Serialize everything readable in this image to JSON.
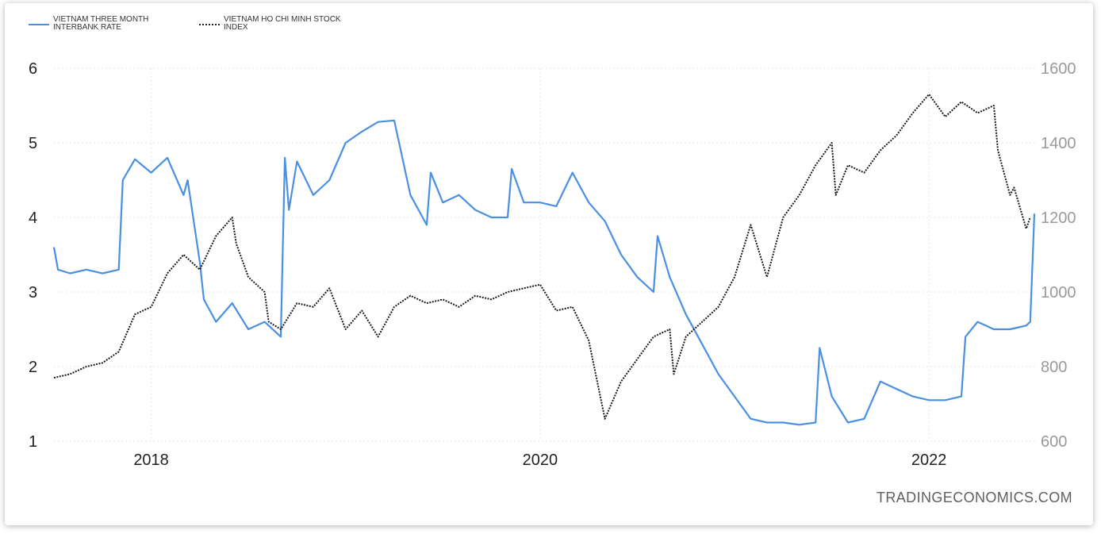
{
  "legend": {
    "series1": "VIETNAM THREE MONTH INTERBANK RATE",
    "series2": "VIETNAM HO CHI MINH STOCK INDEX"
  },
  "watermark": "TRADINGECONOMICS.COM",
  "colors": {
    "series1": "#4a90e2",
    "series2": "#1a1a1a",
    "grid": "#e6e6e6"
  },
  "chart_data": {
    "type": "line",
    "x_ticks": [
      "2018",
      "2020",
      "2022"
    ],
    "y_left": {
      "ticks": [
        1,
        2,
        3,
        4,
        5,
        6
      ],
      "range": [
        1,
        6
      ]
    },
    "y_right": {
      "ticks": [
        600,
        800,
        1000,
        1200,
        1400,
        1600
      ],
      "range": [
        600,
        1600
      ]
    },
    "x_range": [
      "2017-07",
      "2022-07"
    ],
    "grid": true,
    "legend_position": "top-left",
    "series": [
      {
        "name": "VIETNAM THREE MONTH INTERBANK RATE",
        "axis": "left",
        "style": "solid",
        "points": [
          [
            "2017-07",
            3.6
          ],
          [
            "2017-07",
            3.3
          ],
          [
            "2017-08",
            3.25
          ],
          [
            "2017-09",
            3.3
          ],
          [
            "2017-10",
            3.25
          ],
          [
            "2017-11",
            3.3
          ],
          [
            "2017-11",
            4.5
          ],
          [
            "2017-12",
            4.78
          ],
          [
            "2018-01",
            4.6
          ],
          [
            "2018-02",
            4.8
          ],
          [
            "2018-03",
            4.3
          ],
          [
            "2018-03",
            4.5
          ],
          [
            "2018-04",
            3.4
          ],
          [
            "2018-04",
            2.9
          ],
          [
            "2018-05",
            2.6
          ],
          [
            "2018-06",
            2.85
          ],
          [
            "2018-07",
            2.5
          ],
          [
            "2018-08",
            2.6
          ],
          [
            "2018-09",
            2.4
          ],
          [
            "2018-09",
            4.8
          ],
          [
            "2018-09",
            4.1
          ],
          [
            "2018-10",
            4.75
          ],
          [
            "2018-11",
            4.3
          ],
          [
            "2018-12",
            4.5
          ],
          [
            "2019-01",
            5.0
          ],
          [
            "2019-02",
            5.15
          ],
          [
            "2019-03",
            5.28
          ],
          [
            "2019-04",
            5.3
          ],
          [
            "2019-05",
            4.3
          ],
          [
            "2019-06",
            3.9
          ],
          [
            "2019-06",
            4.6
          ],
          [
            "2019-07",
            4.2
          ],
          [
            "2019-08",
            4.3
          ],
          [
            "2019-09",
            4.1
          ],
          [
            "2019-10",
            4.0
          ],
          [
            "2019-11",
            4.0
          ],
          [
            "2019-11",
            4.65
          ],
          [
            "2019-12",
            4.2
          ],
          [
            "2020-01",
            4.2
          ],
          [
            "2020-02",
            4.15
          ],
          [
            "2020-03",
            4.6
          ],
          [
            "2020-04",
            4.2
          ],
          [
            "2020-05",
            3.95
          ],
          [
            "2020-06",
            3.5
          ],
          [
            "2020-07",
            3.2
          ],
          [
            "2020-08",
            3.0
          ],
          [
            "2020-08",
            3.75
          ],
          [
            "2020-09",
            3.2
          ],
          [
            "2020-10",
            2.7
          ],
          [
            "2020-11",
            2.3
          ],
          [
            "2020-12",
            1.9
          ],
          [
            "2021-01",
            1.6
          ],
          [
            "2021-02",
            1.3
          ],
          [
            "2021-03",
            1.25
          ],
          [
            "2021-04",
            1.25
          ],
          [
            "2021-05",
            1.22
          ],
          [
            "2021-06",
            1.25
          ],
          [
            "2021-06",
            2.25
          ],
          [
            "2021-07",
            1.6
          ],
          [
            "2021-08",
            1.25
          ],
          [
            "2021-09",
            1.3
          ],
          [
            "2021-10",
            1.8
          ],
          [
            "2021-11",
            1.7
          ],
          [
            "2021-12",
            1.6
          ],
          [
            "2022-01",
            1.55
          ],
          [
            "2022-02",
            1.55
          ],
          [
            "2022-03",
            1.6
          ],
          [
            "2022-03",
            2.4
          ],
          [
            "2022-04",
            2.6
          ],
          [
            "2022-05",
            2.5
          ],
          [
            "2022-06",
            2.5
          ],
          [
            "2022-07",
            2.55
          ],
          [
            "2022-07",
            2.6
          ],
          [
            "2022-07",
            4.05
          ]
        ]
      },
      {
        "name": "VIETNAM HO CHI MINH STOCK INDEX",
        "axis": "right",
        "style": "dotted",
        "points": [
          [
            "2017-07",
            770
          ],
          [
            "2017-08",
            780
          ],
          [
            "2017-09",
            800
          ],
          [
            "2017-10",
            810
          ],
          [
            "2017-11",
            840
          ],
          [
            "2017-12",
            940
          ],
          [
            "2018-01",
            960
          ],
          [
            "2018-02",
            1050
          ],
          [
            "2018-03",
            1100
          ],
          [
            "2018-04",
            1060
          ],
          [
            "2018-05",
            1150
          ],
          [
            "2018-06",
            1200
          ],
          [
            "2018-06",
            1130
          ],
          [
            "2018-07",
            1040
          ],
          [
            "2018-08",
            1000
          ],
          [
            "2018-08",
            920
          ],
          [
            "2018-09",
            900
          ],
          [
            "2018-10",
            970
          ],
          [
            "2018-11",
            960
          ],
          [
            "2018-12",
            1010
          ],
          [
            "2019-01",
            900
          ],
          [
            "2019-02",
            950
          ],
          [
            "2019-03",
            880
          ],
          [
            "2019-04",
            960
          ],
          [
            "2019-05",
            990
          ],
          [
            "2019-06",
            970
          ],
          [
            "2019-07",
            980
          ],
          [
            "2019-08",
            960
          ],
          [
            "2019-09",
            990
          ],
          [
            "2019-10",
            980
          ],
          [
            "2019-11",
            1000
          ],
          [
            "2019-12",
            1010
          ],
          [
            "2020-01",
            1020
          ],
          [
            "2020-02",
            950
          ],
          [
            "2020-03",
            960
          ],
          [
            "2020-04",
            870
          ],
          [
            "2020-05",
            660
          ],
          [
            "2020-06",
            760
          ],
          [
            "2020-07",
            820
          ],
          [
            "2020-08",
            880
          ],
          [
            "2020-09",
            900
          ],
          [
            "2020-09",
            780
          ],
          [
            "2020-10",
            880
          ],
          [
            "2020-11",
            920
          ],
          [
            "2020-12",
            960
          ],
          [
            "2021-01",
            1040
          ],
          [
            "2021-02",
            1180
          ],
          [
            "2021-03",
            1040
          ],
          [
            "2021-04",
            1200
          ],
          [
            "2021-05",
            1260
          ],
          [
            "2021-06",
            1340
          ],
          [
            "2021-07",
            1400
          ],
          [
            "2021-07",
            1260
          ],
          [
            "2021-08",
            1340
          ],
          [
            "2021-09",
            1320
          ],
          [
            "2021-10",
            1380
          ],
          [
            "2021-11",
            1420
          ],
          [
            "2021-12",
            1480
          ],
          [
            "2022-01",
            1530
          ],
          [
            "2022-02",
            1470
          ],
          [
            "2022-03",
            1510
          ],
          [
            "2022-04",
            1480
          ],
          [
            "2022-05",
            1500
          ],
          [
            "2022-05",
            1380
          ],
          [
            "2022-06",
            1260
          ],
          [
            "2022-06",
            1280
          ],
          [
            "2022-07",
            1170
          ],
          [
            "2022-07",
            1200
          ]
        ]
      }
    ]
  }
}
